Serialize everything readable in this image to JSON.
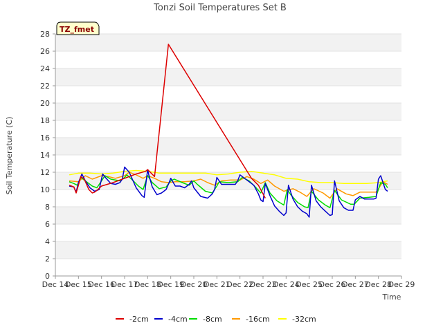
{
  "chart_data": {
    "type": "line",
    "title": "Tonzi Soil Temperatures Set B",
    "xlabel": "Time",
    "ylabel": "Soil Temperature (C)",
    "badge": "TZ_fmet",
    "xlim": [
      14,
      29
    ],
    "ylim": [
      0,
      28
    ],
    "x_ticks": [
      14,
      15,
      16,
      17,
      18,
      19,
      20,
      21,
      22,
      23,
      24,
      25,
      26,
      27,
      28,
      29
    ],
    "x_tick_labels": [
      "Dec 14",
      "Dec 15",
      "Dec 16",
      "Dec 17",
      "Dec 18",
      "Dec 19",
      "Dec 20",
      "Dec 21",
      "Dec 22",
      "Dec 23",
      "Dec 24",
      "Dec 25",
      "Dec 26",
      "Dec 27",
      "Dec 28",
      "Dec 29"
    ],
    "y_ticks": [
      0,
      2,
      4,
      6,
      8,
      10,
      12,
      14,
      16,
      18,
      20,
      22,
      24,
      26,
      28
    ],
    "y_tick_labels": [
      "0",
      "2",
      "4",
      "6",
      "8",
      "10",
      "12",
      "14",
      "16",
      "18",
      "20",
      "22",
      "24",
      "26",
      "28"
    ],
    "series": [
      {
        "name": "-2cm",
        "color": "#dd0000",
        "x": [
          14.6,
          14.7,
          14.8,
          14.9,
          15.0,
          15.1,
          15.25,
          15.35,
          15.45,
          15.6,
          15.7,
          15.8,
          16.0,
          16.5,
          17.0,
          17.5,
          17.9,
          18.0,
          18.3,
          18.9,
          22.5,
          22.8,
          23.1
        ],
        "y": [
          10.5,
          10.4,
          10.3,
          9.6,
          10.5,
          11.5,
          11.2,
          10.6,
          10.0,
          9.6,
          9.7,
          9.9,
          10.4,
          10.8,
          11.3,
          11.8,
          12.1,
          12.3,
          11.5,
          26.8,
          11.3,
          10.5,
          9.0
        ]
      },
      {
        "name": "-4cm",
        "color": "#0000cc",
        "x": [
          14.6,
          14.8,
          14.9,
          15.0,
          15.15,
          15.3,
          15.5,
          15.7,
          15.9,
          16.05,
          16.2,
          16.4,
          16.6,
          16.8,
          16.9,
          17.0,
          17.2,
          17.5,
          17.75,
          17.85,
          18.0,
          18.05,
          18.2,
          18.4,
          18.6,
          18.8,
          18.9,
          19.0,
          19.2,
          19.4,
          19.6,
          19.8,
          19.9,
          20.0,
          20.3,
          20.6,
          20.8,
          20.9,
          21.0,
          21.2,
          21.4,
          21.6,
          21.8,
          21.9,
          22.0,
          22.2,
          22.4,
          22.6,
          22.8,
          22.9,
          23.0,
          23.1,
          23.3,
          23.5,
          23.7,
          23.9,
          24.0,
          24.1,
          24.3,
          24.5,
          24.7,
          24.9,
          25.0,
          25.1,
          25.3,
          25.5,
          25.7,
          25.9,
          26.0,
          26.1,
          26.3,
          26.5,
          26.7,
          26.9,
          27.0,
          27.2,
          27.4,
          27.6,
          27.8,
          27.9,
          28.0,
          28.1,
          28.3,
          28.4
        ],
        "y": [
          10.4,
          10.3,
          9.7,
          10.8,
          11.8,
          11.0,
          10.2,
          9.8,
          10.0,
          11.8,
          11.3,
          10.7,
          10.6,
          10.8,
          11.2,
          12.6,
          12.0,
          10.2,
          9.3,
          9.1,
          12.3,
          11.7,
          10.3,
          9.4,
          9.6,
          10.0,
          10.6,
          11.3,
          10.4,
          10.4,
          10.2,
          10.6,
          11.0,
          10.2,
          9.2,
          9.0,
          9.5,
          10.0,
          11.4,
          10.6,
          10.6,
          10.6,
          10.6,
          11.0,
          11.7,
          11.3,
          10.9,
          10.5,
          9.5,
          8.8,
          8.6,
          10.7,
          9.3,
          8.1,
          7.5,
          7.0,
          7.3,
          10.5,
          8.9,
          8.0,
          7.5,
          7.2,
          6.8,
          10.5,
          8.7,
          8.0,
          7.5,
          7.0,
          7.1,
          11.0,
          8.7,
          7.9,
          7.6,
          7.6,
          8.8,
          9.2,
          8.9,
          8.9,
          8.9,
          9.0,
          11.2,
          11.6,
          10.0,
          9.8
        ]
      },
      {
        "name": "-8cm",
        "color": "#00dd00",
        "x": [
          14.6,
          14.8,
          14.95,
          15.1,
          15.3,
          15.6,
          15.8,
          16.0,
          16.15,
          16.4,
          16.8,
          17.0,
          17.1,
          17.3,
          17.6,
          17.8,
          18.0,
          18.2,
          18.5,
          18.8,
          19.0,
          19.15,
          19.5,
          19.8,
          20.0,
          20.15,
          20.5,
          20.8,
          21.0,
          21.1,
          21.5,
          21.9,
          22.1,
          22.4,
          22.7,
          22.9,
          23.1,
          23.3,
          23.6,
          23.9,
          24.05,
          24.2,
          24.5,
          24.8,
          24.95,
          25.1,
          25.4,
          25.7,
          25.9,
          26.1,
          26.4,
          26.8,
          26.95,
          27.2,
          27.6,
          27.9,
          28.1,
          28.3,
          28.4
        ],
        "y": [
          10.9,
          10.7,
          10.5,
          11.4,
          11.0,
          10.4,
          10.2,
          11.0,
          11.6,
          11.2,
          11.0,
          11.4,
          11.7,
          11.2,
          10.4,
          10.0,
          11.6,
          10.8,
          10.1,
          10.3,
          11.0,
          11.2,
          10.8,
          10.5,
          11.0,
          10.6,
          9.8,
          9.6,
          10.4,
          10.9,
          10.8,
          10.9,
          11.4,
          11.0,
          10.2,
          9.6,
          10.8,
          9.6,
          8.7,
          8.2,
          10.0,
          9.4,
          8.5,
          8.0,
          7.9,
          9.8,
          8.8,
          8.2,
          7.9,
          9.9,
          8.8,
          8.3,
          8.3,
          9.0,
          9.1,
          9.2,
          10.8,
          10.6,
          10.2
        ]
      },
      {
        "name": "-16cm",
        "color": "#ff9900",
        "x": [
          14.6,
          15.0,
          15.3,
          15.6,
          16.0,
          16.3,
          16.6,
          17.0,
          17.2,
          17.5,
          17.8,
          18.0,
          18.3,
          18.6,
          18.9,
          19.2,
          19.6,
          20.0,
          20.3,
          20.6,
          20.9,
          21.2,
          21.6,
          22.0,
          22.3,
          22.6,
          22.9,
          23.2,
          23.5,
          23.9,
          24.3,
          24.6,
          24.9,
          25.2,
          25.6,
          25.9,
          26.2,
          26.6,
          26.9,
          27.2,
          27.6,
          27.9,
          28.2,
          28.4
        ],
        "y": [
          11.0,
          10.9,
          11.6,
          11.2,
          11.6,
          11.5,
          11.3,
          11.6,
          12.0,
          11.7,
          11.3,
          11.6,
          11.3,
          10.9,
          10.8,
          10.9,
          10.9,
          11.0,
          11.2,
          10.8,
          10.5,
          11.0,
          11.1,
          11.1,
          11.5,
          11.2,
          10.7,
          11.1,
          10.4,
          9.8,
          10.1,
          9.7,
          9.2,
          10.1,
          9.6,
          9.0,
          10.1,
          9.5,
          9.3,
          9.7,
          9.7,
          9.7,
          10.9,
          10.6
        ]
      },
      {
        "name": "-32cm",
        "color": "#ffff00",
        "x": [
          14.6,
          15.0,
          15.5,
          16.0,
          16.5,
          17.0,
          17.5,
          18.0,
          18.5,
          19.0,
          19.5,
          20.0,
          20.5,
          21.0,
          21.5,
          22.0,
          22.5,
          23.0,
          23.5,
          24.0,
          24.5,
          25.0,
          25.5,
          26.0,
          26.5,
          27.0,
          27.5,
          28.0,
          28.4
        ],
        "y": [
          11.7,
          11.9,
          11.9,
          11.8,
          11.9,
          12.1,
          12.2,
          12.1,
          11.9,
          11.9,
          11.9,
          11.9,
          11.9,
          11.7,
          11.8,
          12.0,
          12.1,
          11.9,
          11.7,
          11.3,
          11.2,
          10.9,
          10.8,
          10.8,
          10.7,
          10.7,
          10.7,
          10.8,
          11.0
        ]
      }
    ]
  }
}
